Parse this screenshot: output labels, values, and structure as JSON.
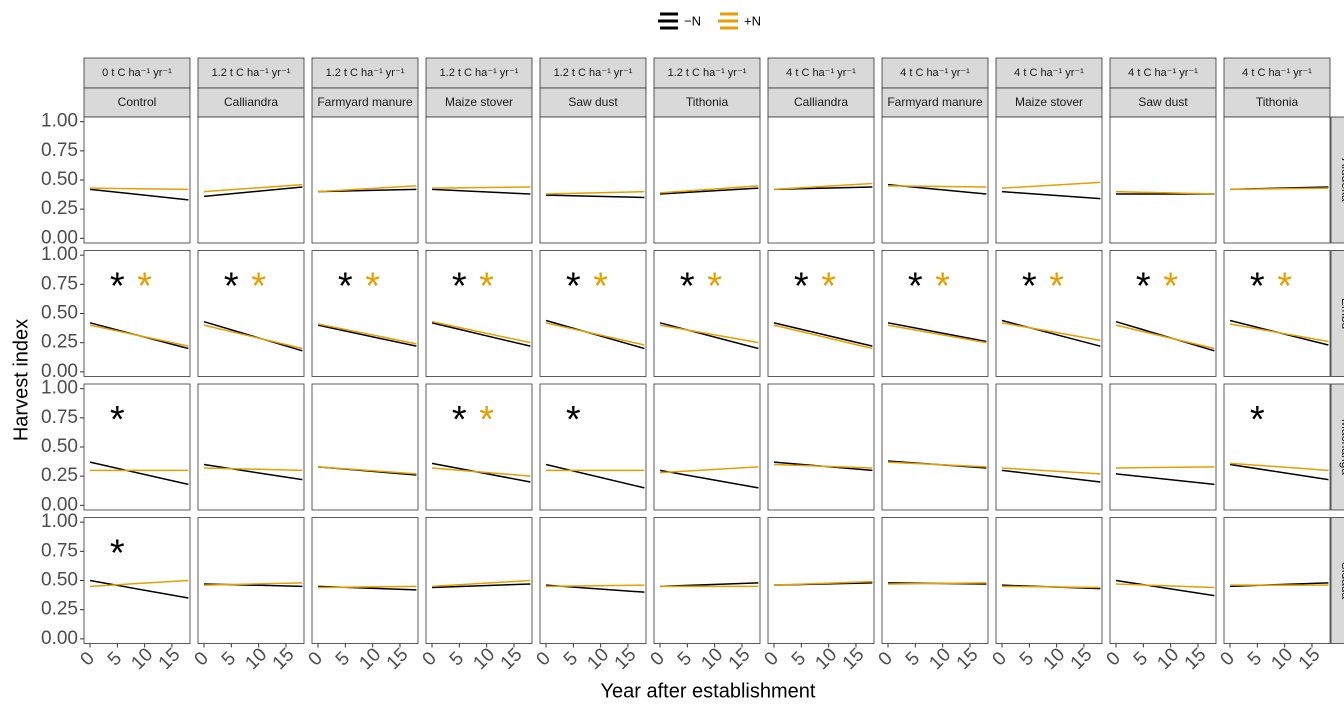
{
  "chart_data": {
    "type": "facet-trend",
    "x_label": "Year after establishment",
    "y_label": "Harvest index",
    "legend": [
      {
        "name": "−N",
        "color": "#000000"
      },
      {
        "name": "+N",
        "color": "#e69f00"
      }
    ],
    "xlim": [
      -1.1,
      18.3
    ],
    "xticks": [
      0,
      5,
      10,
      15
    ],
    "ylim": [
      -0.04,
      1.04
    ],
    "yticks": [
      {
        "value": 0,
        "label": "0.00"
      },
      {
        "value": 0.25,
        "label": "0.25"
      },
      {
        "value": 0.5,
        "label": "0.50"
      },
      {
        "value": 0.75,
        "label": "0.75"
      },
      {
        "value": 1,
        "label": "1.00"
      }
    ],
    "trend_x": [
      0,
      18
    ],
    "star_x": [
      5,
      10
    ],
    "star_y": 0.8,
    "columns": [
      {
        "rate": "0 t C ha⁻¹ yr⁻¹",
        "treatment": "Control"
      },
      {
        "rate": "1.2 t C ha⁻¹ yr⁻¹",
        "treatment": "Calliandra"
      },
      {
        "rate": "1.2 t C ha⁻¹ yr⁻¹",
        "treatment": "Farmyard manure"
      },
      {
        "rate": "1.2 t C ha⁻¹ yr⁻¹",
        "treatment": "Maize stover"
      },
      {
        "rate": "1.2 t C ha⁻¹ yr⁻¹",
        "treatment": "Saw dust"
      },
      {
        "rate": "1.2 t C ha⁻¹ yr⁻¹",
        "treatment": "Tithonia"
      },
      {
        "rate": "4 t C ha⁻¹ yr⁻¹",
        "treatment": "Calliandra"
      },
      {
        "rate": "4 t C ha⁻¹ yr⁻¹",
        "treatment": "Farmyard manure"
      },
      {
        "rate": "4 t C ha⁻¹ yr⁻¹",
        "treatment": "Maize stover"
      },
      {
        "rate": "4 t C ha⁻¹ yr⁻¹",
        "treatment": "Saw dust"
      },
      {
        "rate": "4 t C ha⁻¹ yr⁻¹",
        "treatment": "Tithonia"
      }
    ],
    "rows": [
      "Aludeka",
      "Embu",
      "Machanga",
      "Sidada"
    ],
    "panels": [
      [
        {
          "lines": [
            [
              0.42,
              0.33
            ],
            [
              0.43,
              0.42
            ]
          ],
          "stars": [
            null,
            null
          ]
        },
        {
          "lines": [
            [
              0.36,
              0.44
            ],
            [
              0.4,
              0.46
            ]
          ],
          "stars": [
            null,
            null
          ]
        },
        {
          "lines": [
            [
              0.4,
              0.42
            ],
            [
              0.4,
              0.45
            ]
          ],
          "stars": [
            null,
            null
          ]
        },
        {
          "lines": [
            [
              0.42,
              0.38
            ],
            [
              0.43,
              0.44
            ]
          ],
          "stars": [
            null,
            null
          ]
        },
        {
          "lines": [
            [
              0.37,
              0.35
            ],
            [
              0.38,
              0.4
            ]
          ],
          "stars": [
            null,
            null
          ]
        },
        {
          "lines": [
            [
              0.38,
              0.43
            ],
            [
              0.39,
              0.45
            ]
          ],
          "stars": [
            null,
            null
          ]
        },
        {
          "lines": [
            [
              0.42,
              0.44
            ],
            [
              0.42,
              0.47
            ]
          ],
          "stars": [
            null,
            null
          ]
        },
        {
          "lines": [
            [
              0.46,
              0.38
            ],
            [
              0.45,
              0.44
            ]
          ],
          "stars": [
            null,
            null
          ]
        },
        {
          "lines": [
            [
              0.4,
              0.34
            ],
            [
              0.43,
              0.48
            ]
          ],
          "stars": [
            null,
            null
          ]
        },
        {
          "lines": [
            [
              0.38,
              0.38
            ],
            [
              0.4,
              0.38
            ]
          ],
          "stars": [
            null,
            null
          ]
        },
        {
          "lines": [
            [
              0.42,
              0.44
            ],
            [
              0.42,
              0.43
            ]
          ],
          "stars": [
            null,
            null
          ]
        }
      ],
      [
        {
          "lines": [
            [
              0.42,
              0.2
            ],
            [
              0.4,
              0.22
            ]
          ],
          "stars": [
            "*",
            "*"
          ]
        },
        {
          "lines": [
            [
              0.43,
              0.18
            ],
            [
              0.4,
              0.2
            ]
          ],
          "stars": [
            "*",
            "*"
          ]
        },
        {
          "lines": [
            [
              0.4,
              0.22
            ],
            [
              0.41,
              0.24
            ]
          ],
          "stars": [
            "*",
            "*"
          ]
        },
        {
          "lines": [
            [
              0.42,
              0.22
            ],
            [
              0.43,
              0.25
            ]
          ],
          "stars": [
            "*",
            "*"
          ]
        },
        {
          "lines": [
            [
              0.44,
              0.2
            ],
            [
              0.42,
              0.23
            ]
          ],
          "stars": [
            "*",
            "*"
          ]
        },
        {
          "lines": [
            [
              0.42,
              0.2
            ],
            [
              0.4,
              0.25
            ]
          ],
          "stars": [
            "*",
            "*"
          ]
        },
        {
          "lines": [
            [
              0.42,
              0.22
            ],
            [
              0.4,
              0.2
            ]
          ],
          "stars": [
            "*",
            "*"
          ]
        },
        {
          "lines": [
            [
              0.42,
              0.26
            ],
            [
              0.4,
              0.25
            ]
          ],
          "stars": [
            "*",
            "*"
          ]
        },
        {
          "lines": [
            [
              0.44,
              0.22
            ],
            [
              0.42,
              0.27
            ]
          ],
          "stars": [
            "*",
            "*"
          ]
        },
        {
          "lines": [
            [
              0.43,
              0.18
            ],
            [
              0.4,
              0.2
            ]
          ],
          "stars": [
            "*",
            "*"
          ]
        },
        {
          "lines": [
            [
              0.44,
              0.23
            ],
            [
              0.41,
              0.26
            ]
          ],
          "stars": [
            "*",
            "*"
          ]
        }
      ],
      [
        {
          "lines": [
            [
              0.37,
              0.18
            ],
            [
              0.3,
              0.3
            ]
          ],
          "stars": [
            "*",
            null
          ]
        },
        {
          "lines": [
            [
              0.35,
              0.22
            ],
            [
              0.32,
              0.3
            ]
          ],
          "stars": [
            null,
            null
          ]
        },
        {
          "lines": [
            [
              0.33,
              0.26
            ],
            [
              0.33,
              0.27
            ]
          ],
          "stars": [
            null,
            null
          ]
        },
        {
          "lines": [
            [
              0.36,
              0.2
            ],
            [
              0.32,
              0.25
            ]
          ],
          "stars": [
            "*",
            "*"
          ]
        },
        {
          "lines": [
            [
              0.35,
              0.15
            ],
            [
              0.3,
              0.3
            ]
          ],
          "stars": [
            "*",
            null
          ]
        },
        {
          "lines": [
            [
              0.3,
              0.15
            ],
            [
              0.28,
              0.33
            ]
          ],
          "stars": [
            null,
            null
          ]
        },
        {
          "lines": [
            [
              0.37,
              0.3
            ],
            [
              0.35,
              0.32
            ]
          ],
          "stars": [
            null,
            null
          ]
        },
        {
          "lines": [
            [
              0.38,
              0.32
            ],
            [
              0.37,
              0.33
            ]
          ],
          "stars": [
            null,
            null
          ]
        },
        {
          "lines": [
            [
              0.3,
              0.2
            ],
            [
              0.32,
              0.27
            ]
          ],
          "stars": [
            null,
            null
          ]
        },
        {
          "lines": [
            [
              0.27,
              0.18
            ],
            [
              0.32,
              0.33
            ]
          ],
          "stars": [
            null,
            null
          ]
        },
        {
          "lines": [
            [
              0.35,
              0.22
            ],
            [
              0.36,
              0.3
            ]
          ],
          "stars": [
            "*",
            null
          ]
        }
      ],
      [
        {
          "lines": [
            [
              0.5,
              0.35
            ],
            [
              0.45,
              0.5
            ]
          ],
          "stars": [
            "*",
            null
          ]
        },
        {
          "lines": [
            [
              0.47,
              0.45
            ],
            [
              0.46,
              0.48
            ]
          ],
          "stars": [
            null,
            null
          ]
        },
        {
          "lines": [
            [
              0.45,
              0.42
            ],
            [
              0.44,
              0.45
            ]
          ],
          "stars": [
            null,
            null
          ]
        },
        {
          "lines": [
            [
              0.44,
              0.47
            ],
            [
              0.45,
              0.5
            ]
          ],
          "stars": [
            null,
            null
          ]
        },
        {
          "lines": [
            [
              0.46,
              0.4
            ],
            [
              0.45,
              0.46
            ]
          ],
          "stars": [
            null,
            null
          ]
        },
        {
          "lines": [
            [
              0.45,
              0.48
            ],
            [
              0.45,
              0.45
            ]
          ],
          "stars": [
            null,
            null
          ]
        },
        {
          "lines": [
            [
              0.46,
              0.48
            ],
            [
              0.46,
              0.49
            ]
          ],
          "stars": [
            null,
            null
          ]
        },
        {
          "lines": [
            [
              0.48,
              0.47
            ],
            [
              0.47,
              0.48
            ]
          ],
          "stars": [
            null,
            null
          ]
        },
        {
          "lines": [
            [
              0.46,
              0.43
            ],
            [
              0.45,
              0.44
            ]
          ],
          "stars": [
            null,
            null
          ]
        },
        {
          "lines": [
            [
              0.5,
              0.37
            ],
            [
              0.47,
              0.44
            ]
          ],
          "stars": [
            null,
            null
          ]
        },
        {
          "lines": [
            [
              0.45,
              0.48
            ],
            [
              0.46,
              0.46
            ]
          ],
          "stars": [
            null,
            null
          ]
        }
      ]
    ]
  }
}
